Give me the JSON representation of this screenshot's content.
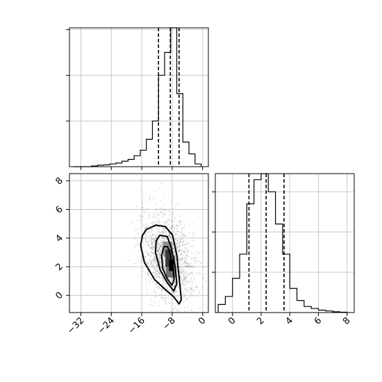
{
  "chart_data": [
    {
      "panel": "marginal-x",
      "type": "histogram",
      "xlim": [
        -35,
        1.5
      ],
      "ylim": [
        0,
        0.152
      ],
      "ytick_values": [
        0.05,
        0.1,
        0.15
      ],
      "bin_edges": [
        -34,
        -32.4,
        -30.8,
        -29.2,
        -27.6,
        -26,
        -24.4,
        -22.8,
        -21.2,
        -19.6,
        -18,
        -16.4,
        -14.8,
        -13.2,
        -11.6,
        -10,
        -8.4,
        -6.8,
        -5.2,
        -3.6,
        -2,
        -0.4
      ],
      "counts": [
        0,
        0,
        0,
        0.0008,
        0.0016,
        0.002,
        0.003,
        0.004,
        0.006,
        0.008,
        0.012,
        0.018,
        0.03,
        0.05,
        0.1,
        0.125,
        0.152,
        0.08,
        0.027,
        0.014,
        0.003
      ],
      "quantile_lines": [
        -11.6,
        -8.5,
        -6.2
      ],
      "grid": true
    },
    {
      "panel": "joint",
      "type": "scatter",
      "xlim": [
        -35,
        1.5
      ],
      "ylim": [
        -1.2,
        8.5
      ],
      "x_ticks": [
        "−32",
        "−24",
        "−16",
        "−8",
        "0"
      ],
      "x_tick_values": [
        -32,
        -24,
        -16,
        -8,
        0
      ],
      "y_ticks": [
        "0",
        "2",
        "4",
        "6",
        "8"
      ],
      "y_tick_values": [
        0,
        2,
        4,
        6,
        8
      ],
      "point_cloud": {
        "center": [
          -9,
          2.6
        ],
        "sd": [
          3.6,
          1.5
        ]
      },
      "contours": [
        {
          "level": "outer",
          "points": [
            [
              -14.8,
              4.6
            ],
            [
              -12.3,
              4.9
            ],
            [
              -9.8,
              4.8
            ],
            [
              -7.9,
              4.2
            ],
            [
              -6.8,
              2.8
            ],
            [
              -6.2,
              1.3
            ],
            [
              -5.6,
              -0.3
            ],
            [
              -6.2,
              -0.6
            ],
            [
              -7.6,
              -0.1
            ],
            [
              -9.8,
              0.4
            ],
            [
              -12.6,
              1.1
            ],
            [
              -15.3,
              2.3
            ],
            [
              -16.3,
              3.5
            ],
            [
              -15.8,
              4.2
            ]
          ]
        },
        {
          "level": "middle",
          "points": [
            [
              -11.3,
              4.2
            ],
            [
              -9.3,
              4.1
            ],
            [
              -8.2,
              3.3
            ],
            [
              -7.2,
              2.0
            ],
            [
              -6.8,
              0.8
            ],
            [
              -7.6,
              0.3
            ],
            [
              -9.3,
              0.9
            ],
            [
              -11.2,
              1.8
            ],
            [
              -12.4,
              3.0
            ],
            [
              -12.2,
              3.8
            ]
          ]
        },
        {
          "level": "inner",
          "points": [
            [
              -10.2,
              3.4
            ],
            [
              -9.2,
              3.4
            ],
            [
              -8.5,
              2.9
            ],
            [
              -7.8,
              2.0
            ],
            [
              -7.5,
              1.1
            ],
            [
              -8.1,
              0.7
            ],
            [
              -9.4,
              1.2
            ],
            [
              -10.5,
              1.9
            ],
            [
              -10.8,
              2.8
            ]
          ]
        }
      ],
      "density_cells": [
        {
          "x": -10.4,
          "y": 2.75,
          "w": 2.4,
          "h": 1.0,
          "shade": "#909090"
        },
        {
          "x": -9.6,
          "y": 1.25,
          "w": 2.4,
          "h": 1.5,
          "shade": "#707070"
        },
        {
          "x": -9.8,
          "y": 2.0,
          "w": 1.6,
          "h": 1.2,
          "shade": "#3a3a3a"
        },
        {
          "x": -8.8,
          "y": 1.7,
          "w": 1.2,
          "h": 0.8,
          "shade": "#000000"
        }
      ],
      "grid": true
    },
    {
      "panel": "marginal-y",
      "type": "histogram",
      "xlim": [
        -1.2,
        8.5
      ],
      "ylim": [
        0,
        0.345
      ],
      "x_ticks": [
        "0",
        "2",
        "4",
        "6",
        "8"
      ],
      "x_tick_values": [
        0,
        2,
        4,
        6,
        8
      ],
      "ytick_values": [
        0.1,
        0.2,
        0.3
      ],
      "bin_edges": [
        -1.0,
        -0.5,
        0.0,
        0.5,
        1.0,
        1.5,
        2.0,
        2.5,
        3.0,
        3.5,
        4.0,
        4.5,
        5.0,
        5.5,
        6.0,
        6.5,
        7.0,
        7.5,
        8.0
      ],
      "counts": [
        0.02,
        0.04,
        0.085,
        0.145,
        0.27,
        0.33,
        0.345,
        0.3,
        0.22,
        0.145,
        0.06,
        0.03,
        0.015,
        0.01,
        0.006,
        0.004,
        0.002,
        0.001
      ],
      "quantile_lines": [
        1.15,
        2.35,
        3.6
      ],
      "grid": true
    }
  ]
}
